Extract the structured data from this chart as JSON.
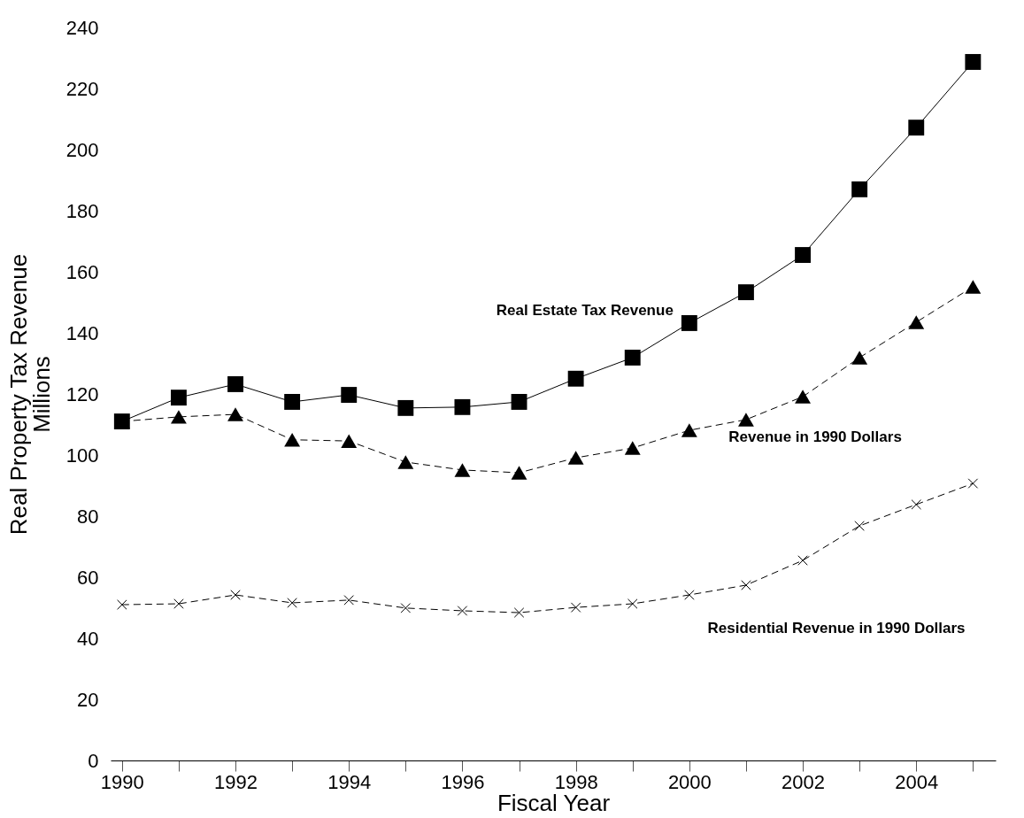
{
  "chart_data": {
    "type": "line",
    "xlabel": "Fiscal Year",
    "ylabel": "Real Property Tax Revenue\nMillions",
    "x": [
      1990,
      1991,
      1992,
      1993,
      1994,
      1995,
      1996,
      1997,
      1998,
      1999,
      2000,
      2001,
      2002,
      2003,
      2004,
      2005
    ],
    "series": [
      {
        "name": "Real Estate Tax Revenue",
        "color": "#000000",
        "marker": "square",
        "line_style": "solid",
        "values": [
          111,
          118.8,
          123.2,
          117.4,
          119.7,
          115.4,
          115.7,
          117.4,
          125,
          131.9,
          143.2,
          153.3,
          165.5,
          187,
          207.2,
          228.7
        ]
      },
      {
        "name": "Revenue in 1990 Dollars",
        "color": "#000000",
        "marker": "triangle",
        "line_style": "dashed",
        "values": [
          111,
          112.5,
          113.3,
          105,
          104.6,
          97.7,
          95.1,
          94.2,
          99.1,
          102.3,
          108.1,
          111.6,
          119.1,
          131.9,
          143.5,
          155.1
        ]
      },
      {
        "name": "Residential Revenue in 1990 Dollars",
        "color": "#000000",
        "marker": "cross",
        "line_style": "dashed",
        "values": [
          51,
          51.3,
          54.2,
          51.6,
          52.5,
          49.9,
          49,
          48.4,
          50.1,
          51.3,
          54.2,
          57.4,
          65.5,
          76.8,
          83.8,
          90.7
        ]
      }
    ],
    "xlim": [
      1989.8,
      2005.4
    ],
    "xticks": [
      1990,
      {
        "value": 1991,
        "label": null
      },
      1992,
      {
        "value": 1993,
        "label": null
      },
      1994,
      {
        "value": 1995,
        "label": null
      },
      1996,
      {
        "value": 1997,
        "label": null
      },
      1998,
      {
        "value": 1999,
        "label": null
      },
      2000,
      {
        "value": 2001,
        "label": null
      },
      2002,
      {
        "value": 2003,
        "label": null
      },
      2004,
      {
        "value": 2005,
        "label": null
      }
    ],
    "ylim": [
      0,
      240
    ],
    "yticks": [
      0,
      20,
      40,
      60,
      80,
      100,
      120,
      140,
      160,
      180,
      200,
      220,
      240
    ],
    "grid": false
  }
}
